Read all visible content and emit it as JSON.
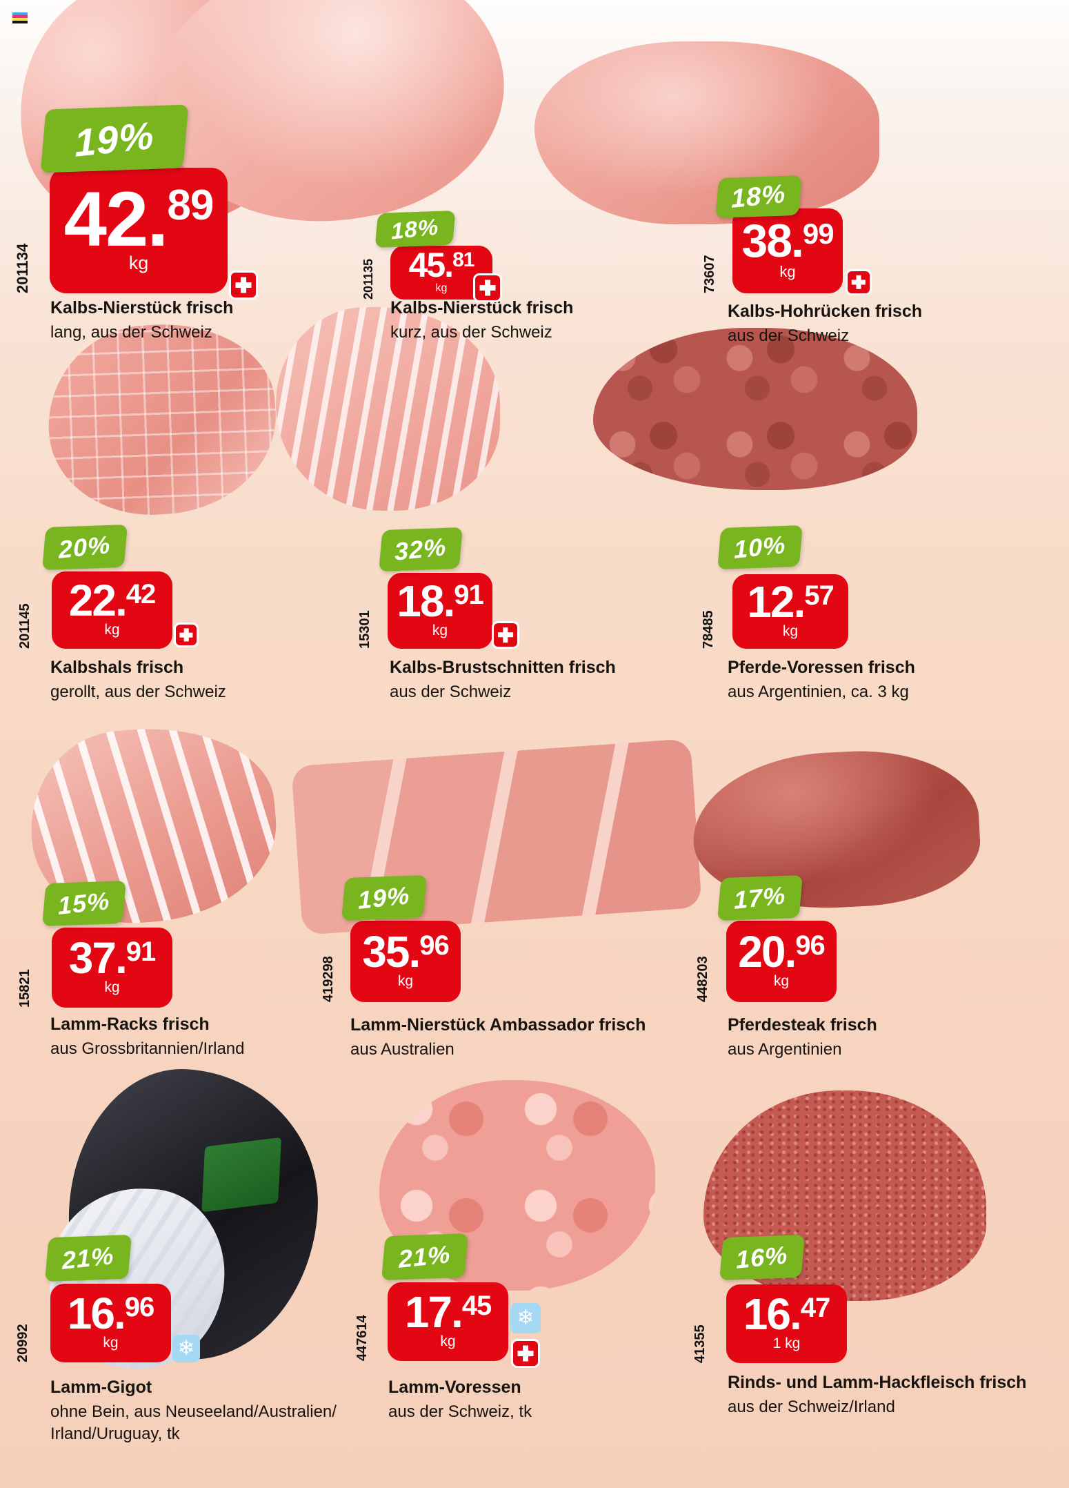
{
  "colors": {
    "accent_red": "#e30613",
    "badge_green": "#79b51f",
    "snowflake_blue": "#a5d8f3",
    "background_top": "#fefdfc",
    "background_bottom": "#f5cfba"
  },
  "icons": {
    "snowflake_glyph": "❄"
  },
  "print_mark": {
    "colors": [
      "#3aa7e0",
      "#e6308b",
      "#f2e23b",
      "#141414"
    ]
  },
  "products": [
    {
      "discount": "19%",
      "price_whole": "42.",
      "price_cents": "89",
      "unit": "kg",
      "article_number": "201134",
      "name": "Kalbs-Nierstück frisch",
      "subtitle": "lang, aus der Schweiz",
      "icons": [
        "swiss-cross"
      ]
    },
    {
      "discount": "18%",
      "price_whole": "45.",
      "price_cents": "81",
      "unit": "kg",
      "article_number": "201135",
      "name": "Kalbs-Nierstück frisch",
      "subtitle": "kurz, aus der Schweiz",
      "icons": [
        "swiss-cross"
      ]
    },
    {
      "discount": "18%",
      "price_whole": "38.",
      "price_cents": "99",
      "unit": "kg",
      "article_number": "73607",
      "name": "Kalbs-Hohrücken frisch",
      "subtitle": "aus der Schweiz",
      "icons": [
        "swiss-cross"
      ]
    },
    {
      "discount": "20%",
      "price_whole": "22.",
      "price_cents": "42",
      "unit": "kg",
      "article_number": "201145",
      "name": "Kalbshals frisch",
      "subtitle": "gerollt, aus der Schweiz",
      "icons": [
        "swiss-cross"
      ]
    },
    {
      "discount": "32%",
      "price_whole": "18.",
      "price_cents": "91",
      "unit": "kg",
      "article_number": "15301",
      "name": "Kalbs-Brustschnitten frisch",
      "subtitle": "aus der Schweiz",
      "icons": [
        "swiss-cross"
      ]
    },
    {
      "discount": "10%",
      "price_whole": "12.",
      "price_cents": "57",
      "unit": "kg",
      "article_number": "78485",
      "name": "Pferde-Voressen frisch",
      "subtitle": "aus Argentinien, ca. 3 kg",
      "icons": []
    },
    {
      "discount": "15%",
      "price_whole": "37.",
      "price_cents": "91",
      "unit": "kg",
      "article_number": "15821",
      "name": "Lamm-Racks frisch",
      "subtitle": "aus Grossbritannien/Irland",
      "icons": []
    },
    {
      "discount": "19%",
      "price_whole": "35.",
      "price_cents": "96",
      "unit": "kg",
      "article_number": "419298",
      "name": "Lamm-Nierstück Ambassador frisch",
      "subtitle": "aus Australien",
      "icons": []
    },
    {
      "discount": "17%",
      "price_whole": "20.",
      "price_cents": "96",
      "unit": "kg",
      "article_number": "448203",
      "name": "Pferdesteak frisch",
      "subtitle": "aus Argentinien",
      "icons": []
    },
    {
      "discount": "21%",
      "price_whole": "16.",
      "price_cents": "96",
      "unit": "kg",
      "article_number": "20992",
      "name": "Lamm-Gigot",
      "subtitle": "ohne Bein, aus Neuseeland/Australien/\nIrland/Uruguay, tk",
      "icons": [
        "snowflake"
      ]
    },
    {
      "discount": "21%",
      "price_whole": "17.",
      "price_cents": "45",
      "unit": "kg",
      "article_number": "447614",
      "name": "Lamm-Voressen",
      "subtitle": "aus der Schweiz, tk",
      "icons": [
        "snowflake",
        "swiss-cross"
      ]
    },
    {
      "discount": "16%",
      "price_whole": "16.",
      "price_cents": "47",
      "unit": "1 kg",
      "article_number": "41355",
      "name": "Rinds- und Lamm-Hackfleisch frisch",
      "subtitle": "aus der Schweiz/Irland",
      "icons": []
    }
  ]
}
